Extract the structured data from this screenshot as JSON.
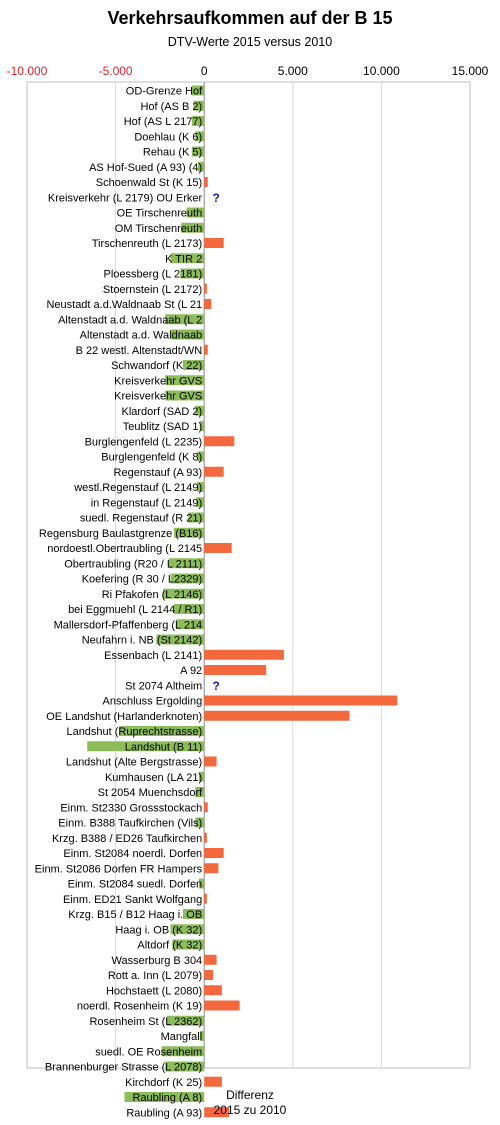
{
  "chart_data": {
    "type": "bar",
    "orientation": "horizontal",
    "title": "Verkehrsaufkommen auf der B 15",
    "subtitle": "DTV-Werte 2015 versus 2010",
    "xlabel_lines": [
      "Differenz",
      "2015 zu 2010"
    ],
    "xlim": [
      -10000,
      15000
    ],
    "xticks": [
      -10000,
      -5000,
      0,
      5000,
      10000,
      15000
    ],
    "xtick_labels": [
      "-10.000",
      "-5.000",
      "0",
      "5.000",
      "10.000",
      "15.000"
    ],
    "grid": true,
    "colors": {
      "positive": "#f4683e",
      "negative": "#8dbd58",
      "tick_negative": "#e0202a",
      "tick_positive": "#000000",
      "missing_marker": "#1a1aa0",
      "grid": "#d3d3d3"
    },
    "missing_marker": "?",
    "categories": [
      "OD-Grenze Hof",
      "Hof (AS B 2)",
      "Hof (AS L 2177)",
      "Doehlau (K 6)",
      "Rehau (K 5)",
      "AS Hof-Sued (A 93) (4)",
      "Schoenwald St (K 15)",
      "Kreisverkehr (L 2179) OU Erker",
      "OE Tirschenreuth",
      "OM Tirschenreuth",
      "Tirschenreuth (L 2173)",
      "K TIR 2",
      "Ploessberg (L 2181)",
      "Stoernstein (L 2172)",
      "Neustadt a.d.Waldnaab St (L 21",
      "Altenstadt a.d. Waldnaab (L 2",
      "Altenstadt a.d. Waldnaab",
      "B 22 westl. Altenstadt/WN",
      "Schwandorf (K 22)",
      "Kreisverkehr GVS",
      "Kreisverkehr GVS",
      "Klardorf (SAD 2)",
      "Teublitz (SAD 1)",
      "Burglengenfeld (L 2235)",
      "Burglengenfeld (K 8)",
      "Regenstauf (A 93)",
      "westl.Regenstauf (L 2149)",
      "in Regenstauf (L 2149)",
      "suedl. Regenstauf (R 21)",
      "Regensburg Baulastgrenze (B16)",
      "nordoestl.Obertraubling (L 2145",
      "Obertraubling (R20 / L 2111)",
      "Koefering (R 30 / L2329)",
      "Ri Pfakofen (L 2146)",
      "bei Eggmuehl (L 2144 / R1)",
      "Mallersdorf-Pfaffenberg (L 214",
      "Neufahrn i. NB (St 2142)",
      "Essenbach (L 2141)",
      "A 92",
      "St 2074 Altheim",
      "Anschluss Ergolding",
      "OE Landshut (Harlanderknoten)",
      "Landshut (Ruprechtstrasse)",
      "Landshut (B 11)",
      "Landshut (Alte Bergstrasse)",
      "Kumhausen (LA 21)",
      "St 2054 Muenchsdorf",
      "Einm. St2330 Grossstockach",
      "Einm. B388 Taufkirchen (Vils)",
      "Krzg. B388 / ED26 Taufkirchen",
      "Einm. St2084 noerdl. Dorfen",
      "Einm. St2086 Dorfen FR Hampers",
      "Einm. St2084 suedl. Dorfen",
      "Einm. ED21 Sankt Wolfgang",
      "Krzg. B15 / B12  Haag i. OB",
      "Haag i. OB (K 32)",
      "Altdorf (K 32)",
      "Wasserburg B 304",
      "Rott a. Inn (L 2079)",
      "Hochstaett (L 2080)",
      "noerdl. Rosenheim (K 19)",
      "Rosenheim St (L 2362)",
      "Mangfall",
      "suedl. OE Rosenheim",
      "Brannenburger Strasse (L 2078)",
      "Kirchdorf (K 25)",
      "Raubling (A 8)",
      "Raubling (A 93)"
    ],
    "values": [
      -700,
      -600,
      -700,
      -500,
      -700,
      -350,
      200,
      null,
      -1000,
      -1300,
      1100,
      -1900,
      -1350,
      150,
      400,
      -2200,
      -1900,
      200,
      -1200,
      -2200,
      -2200,
      -500,
      -250,
      1700,
      -400,
      1100,
      -400,
      -450,
      -900,
      -1700,
      1550,
      -2000,
      -1900,
      -2300,
      -1700,
      -1600,
      -2700,
      4500,
      3500,
      null,
      10900,
      8200,
      -4800,
      -6600,
      700,
      -300,
      -500,
      200,
      -500,
      150,
      1100,
      800,
      -300,
      150,
      -1200,
      -1900,
      -1800,
      700,
      500,
      1000,
      2000,
      -2100,
      -250,
      -2400,
      -2200,
      1000,
      -4500,
      1400
    ]
  }
}
